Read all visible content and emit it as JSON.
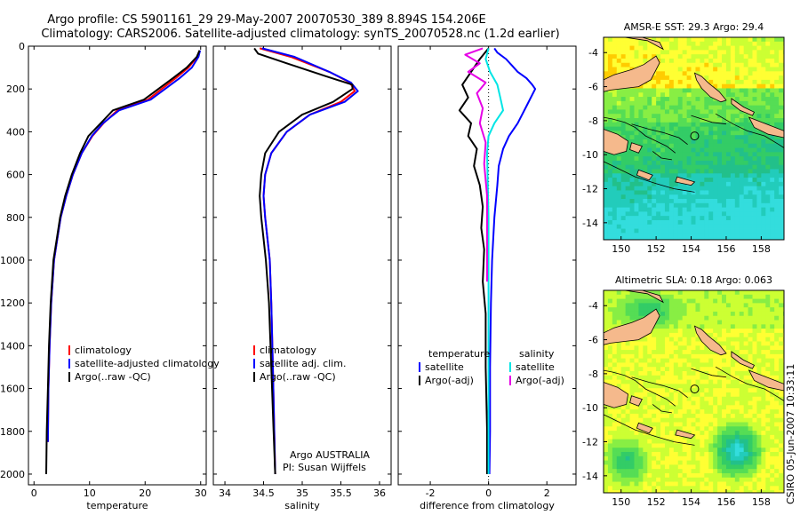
{
  "header": {
    "line1": "Argo profile: CS 5901161_29 29-May-2007 20070530_389 8.894S 154.206E",
    "line2": "Climatology: CARS2006. Satellite-adjusted climatology: synTS_20070528.nc (1.2d earlier)"
  },
  "footer": {
    "credit_line1": "Argo AUSTRALIA",
    "credit_line2": "PI: Susan Wijffels",
    "stamp": "CSIRO 05-Jun-2007 10:33:11"
  },
  "colors": {
    "climatology": "#ff0000",
    "satellite": "#0000ff",
    "argo": "#000000",
    "sal_satellite": "#00e5e5",
    "sal_argo": "#e600e6",
    "land": "#f5b98c"
  },
  "chart_data": [
    {
      "id": "temperature",
      "type": "line",
      "xlabel": "temperature",
      "ylabel": "",
      "xlim": [
        -1,
        31
      ],
      "ylim": [
        2050,
        0
      ],
      "xticks": [
        0,
        10,
        20,
        30
      ],
      "yticks": [
        0,
        200,
        400,
        600,
        800,
        1000,
        1200,
        1400,
        1600,
        1800,
        2000
      ],
      "legend": [
        "climatology",
        "satellite-adjusted climatology",
        "Argo(..raw -QC)"
      ],
      "series": [
        {
          "name": "climatology",
          "color": "#ff0000",
          "x": [
            29.8,
            29.4,
            27.8,
            25.5,
            20.5,
            15.0,
            12.5,
            10.5,
            8.6,
            7.0,
            5.8,
            4.8,
            4.2,
            3.6,
            3.1,
            2.8,
            2.6,
            2.5
          ],
          "y": [
            20,
            50,
            100,
            150,
            250,
            300,
            360,
            420,
            500,
            600,
            700,
            800,
            900,
            1000,
            1200,
            1400,
            1600,
            1850
          ]
        },
        {
          "name": "satellite-adjusted climatology",
          "color": "#0000ff",
          "x": [
            29.9,
            29.6,
            28.4,
            26.2,
            21.0,
            15.3,
            12.4,
            10.4,
            8.6,
            7.0,
            5.8,
            4.8,
            4.2,
            3.6,
            3.1,
            2.8,
            2.6,
            2.5
          ],
          "y": [
            20,
            50,
            100,
            150,
            250,
            300,
            360,
            420,
            500,
            600,
            700,
            800,
            900,
            1000,
            1200,
            1400,
            1600,
            1850
          ]
        },
        {
          "name": "Argo(..raw -QC)",
          "color": "#000000",
          "x": [
            29.8,
            29.3,
            27.5,
            25.0,
            19.8,
            14.2,
            12.0,
            9.8,
            8.3,
            6.8,
            5.6,
            4.7,
            4.1,
            3.5,
            3.0,
            2.7,
            2.5,
            2.3,
            2.2
          ],
          "y": [
            20,
            50,
            100,
            150,
            250,
            300,
            360,
            420,
            500,
            600,
            700,
            800,
            900,
            1000,
            1200,
            1400,
            1600,
            1800,
            2000
          ]
        }
      ]
    },
    {
      "id": "salinity",
      "type": "line",
      "xlabel": "salinity",
      "ylabel": "",
      "xlim": [
        33.85,
        36.15
      ],
      "ylim": [
        2050,
        0
      ],
      "xticks": [
        34,
        34.5,
        35,
        35.5,
        36
      ],
      "yticks": [
        0,
        200,
        400,
        600,
        800,
        1000,
        1200,
        1400,
        1600,
        1800,
        2000
      ],
      "legend": [
        "climatology",
        "satellite adj. clim.",
        "Argo(..raw -QC)"
      ],
      "series": [
        {
          "name": "climatology",
          "color": "#ff0000",
          "x": [
            34.45,
            34.85,
            35.35,
            35.62,
            35.68,
            35.5,
            35.1,
            34.8,
            34.6,
            34.52,
            34.5,
            34.52,
            34.55,
            34.58,
            34.6,
            34.62,
            34.65
          ],
          "y": [
            10,
            50,
            120,
            170,
            210,
            260,
            320,
            400,
            500,
            600,
            700,
            800,
            900,
            1000,
            1200,
            1500,
            2000
          ]
        },
        {
          "name": "satellite adj. clim.",
          "color": "#0000ff",
          "x": [
            34.48,
            34.9,
            35.35,
            35.63,
            35.72,
            35.55,
            35.1,
            34.8,
            34.6,
            34.52,
            34.5,
            34.52,
            34.55,
            34.58,
            34.6,
            34.62,
            34.65
          ],
          "y": [
            10,
            50,
            120,
            170,
            210,
            260,
            320,
            400,
            500,
            600,
            700,
            800,
            900,
            1000,
            1200,
            1500,
            2000
          ]
        },
        {
          "name": "Argo(..raw -QC)",
          "color": "#000000",
          "x": [
            34.38,
            34.43,
            34.8,
            35.3,
            35.65,
            35.65,
            35.4,
            35.0,
            34.7,
            34.52,
            34.47,
            34.45,
            34.47,
            34.5,
            34.53,
            34.57,
            34.6,
            34.63,
            34.65
          ],
          "y": [
            10,
            35,
            80,
            140,
            180,
            200,
            260,
            320,
            400,
            500,
            600,
            700,
            800,
            900,
            1000,
            1200,
            1500,
            1800,
            2000
          ]
        }
      ]
    },
    {
      "id": "difference",
      "type": "line",
      "xlabel": "difference from climatology",
      "ylabel": "",
      "xlim": [
        -3.1,
        3.0
      ],
      "ylim": [
        2050,
        0
      ],
      "xticks": [
        -2,
        0,
        2
      ],
      "yticks": [
        0,
        200,
        400,
        600,
        800,
        1000,
        1200,
        1400,
        1600,
        1800,
        2000
      ],
      "legend_groups": [
        {
          "heading": "temperature",
          "items": [
            "satellite",
            "Argo(-adj)"
          ]
        },
        {
          "heading": "salinity",
          "items": [
            "satellite",
            "Argo(-adj)"
          ]
        }
      ],
      "series": [
        {
          "name": "temperature satellite",
          "color": "#0000ff",
          "x": [
            0.2,
            0.3,
            0.6,
            0.8,
            1.0,
            1.3,
            1.5,
            1.6,
            1.3,
            1.0,
            0.7,
            0.5,
            0.35,
            0.3,
            0.2,
            0.12,
            0.08,
            0.05,
            0.05,
            0.03
          ],
          "y": [
            10,
            30,
            60,
            90,
            120,
            150,
            180,
            200,
            280,
            360,
            420,
            480,
            560,
            650,
            800,
            1000,
            1200,
            1500,
            1800,
            2000
          ]
        },
        {
          "name": "temperature Argo(-adj)",
          "color": "#000000",
          "x": [
            0.0,
            -0.3,
            -0.6,
            -0.9,
            -0.7,
            -1.0,
            -0.6,
            -0.7,
            -0.4,
            -0.5,
            -0.3,
            -0.2,
            -0.25,
            -0.15,
            -0.2,
            -0.1,
            -0.1,
            -0.05,
            -0.05
          ],
          "y": [
            10,
            60,
            120,
            180,
            240,
            300,
            360,
            420,
            480,
            560,
            650,
            750,
            850,
            950,
            1100,
            1250,
            1500,
            1800,
            2000
          ]
        },
        {
          "name": "salinity satellite",
          "color": "#00e5e5",
          "x": [
            0.0,
            -0.1,
            0.05,
            0.3,
            0.4,
            0.5,
            0.2,
            0.0,
            -0.05,
            0.0,
            0.0,
            0.0,
            0.0
          ],
          "y": [
            10,
            60,
            120,
            180,
            240,
            300,
            360,
            420,
            500,
            800,
            1200,
            1600,
            2000
          ]
        },
        {
          "name": "salinity Argo(-adj)",
          "color": "#e600e6",
          "x": [
            -0.2,
            -0.8,
            -0.3,
            -0.7,
            -0.1,
            -0.4,
            -0.2,
            -0.3,
            -0.1,
            -0.15,
            -0.05,
            -0.05,
            -0.05
          ],
          "y": [
            10,
            40,
            80,
            120,
            170,
            220,
            290,
            360,
            450,
            550,
            700,
            900,
            1100
          ]
        }
      ]
    },
    {
      "id": "sst_map",
      "type": "heatmap",
      "title": "AMSR-E SST: 29.3 Argo: 29.4",
      "xlim": [
        149,
        159.3
      ],
      "ylim": [
        -15,
        -3.1
      ],
      "xticks": [
        150,
        152,
        154,
        156,
        158
      ],
      "yticks": [
        -4,
        -6,
        -8,
        -10,
        -12,
        -14
      ],
      "marker": {
        "lon": 154.2,
        "lat": -8.9
      },
      "palette": [
        "#ff9a00",
        "#ffcc00",
        "#ffff33",
        "#ccff33",
        "#88ee44",
        "#55dd55",
        "#33cc66",
        "#22c08a",
        "#22ccbb",
        "#33dddd"
      ]
    },
    {
      "id": "sla_map",
      "type": "heatmap",
      "title": "Altimetric SLA: 0.18 Argo: 0.063",
      "xlim": [
        149,
        159.3
      ],
      "ylim": [
        -15,
        -3.1
      ],
      "xticks": [
        150,
        152,
        154,
        156,
        158
      ],
      "yticks": [
        -4,
        -6,
        -8,
        -10,
        -12,
        -14
      ],
      "marker": {
        "lon": 154.2,
        "lat": -8.9
      },
      "palette": [
        "#ffd52e",
        "#ffff33",
        "#ccff33",
        "#88ee44",
        "#55dd55",
        "#33cc66",
        "#22c08a",
        "#22ccbb",
        "#33dddd"
      ]
    }
  ]
}
